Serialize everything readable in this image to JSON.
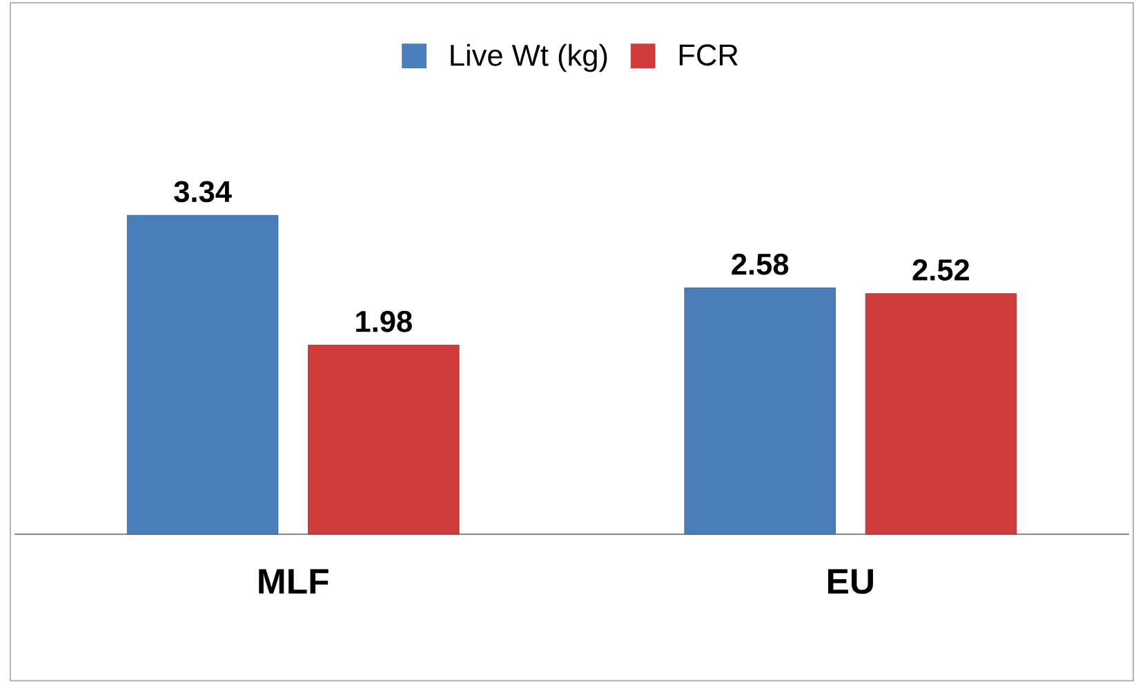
{
  "chart_data": {
    "type": "bar",
    "categories": [
      "MLF",
      "EU"
    ],
    "series": [
      {
        "name": "Live Wt (kg)",
        "color": "#4a7ebb",
        "values": [
          3.34,
          2.58
        ]
      },
      {
        "name": "FCR",
        "color": "#d03c3c",
        "values": [
          1.98,
          2.52
        ]
      }
    ],
    "data_labels": true,
    "legend": "top"
  }
}
